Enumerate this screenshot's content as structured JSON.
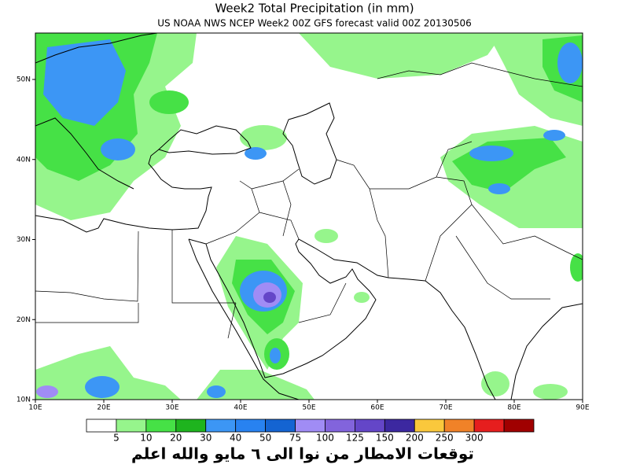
{
  "header": {
    "title": "Week2 Total Precipitation (in mm)",
    "subtitle": "US NOAA NWS NCEP Week2 00Z GFS forecast valid 00Z 20130506"
  },
  "axes": {
    "lat_labels": [
      "50N",
      "40N",
      "30N",
      "20N",
      "10N"
    ],
    "lon_labels": [
      "10E",
      "20E",
      "30E",
      "40E",
      "50E",
      "60E",
      "70E",
      "80E",
      "90E"
    ]
  },
  "legend": {
    "labels": [
      "5",
      "10",
      "20",
      "30",
      "40",
      "50",
      "75",
      "100",
      "125",
      "150",
      "200",
      "250",
      "300"
    ],
    "colors": [
      "#ffffff",
      "#96f58c",
      "#46e146",
      "#1eb41e",
      "#3c96f5",
      "#2882f0",
      "#1464d2",
      "#a08cf5",
      "#8264dc",
      "#6446c8",
      "#3c28a0",
      "#fac83c",
      "#f08228",
      "#e61e1e",
      "#a00000"
    ]
  },
  "caption": "توقعات الامطار من نوا الى ٦ مايو والله اعلم"
}
